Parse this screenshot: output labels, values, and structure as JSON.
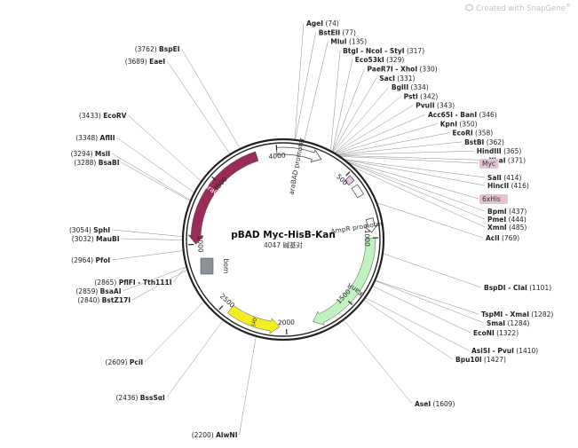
{
  "watermark": {
    "text": "Created with SnapGene",
    "mark": "®",
    "icon": "snapgene-logo-icon",
    "color": "#b9c3cf"
  },
  "plasmid": {
    "name": "pBAD Myc-HisB-Kan",
    "length_text": "4047 碱基对",
    "length_bp": 4047
  },
  "ticks": [
    {
      "label": "500",
      "bp": 500
    },
    {
      "label": "1000",
      "bp": 1000
    },
    {
      "label": "1500",
      "bp": 1500
    },
    {
      "label": "2000",
      "bp": 2000
    },
    {
      "label": "2500",
      "bp": 2500
    },
    {
      "label": "3000",
      "bp": 3000
    },
    {
      "label": "3500",
      "bp": 3500
    },
    {
      "label": "4000",
      "bp": 4000
    }
  ],
  "features": [
    {
      "name": "araBAD promoter",
      "start": 4000,
      "end": 285,
      "kind": "arrow-outline",
      "color": "#ffffff"
    },
    {
      "name": "araC",
      "start": 3850,
      "end": 3000,
      "kind": "arrow",
      "color": "#9b2c5a"
    },
    {
      "name": "rrnB T1 terminator",
      "start": 520,
      "end": 565,
      "kind": "box",
      "color": "#e7c6e1"
    },
    {
      "name": "rrnB T2 terminator",
      "start": 600,
      "end": 680,
      "kind": "box",
      "color": "#ffffff"
    },
    {
      "name": "AmpR promoter",
      "start": 860,
      "end": 960,
      "kind": "arrow-outline",
      "color": "#ffffff"
    },
    {
      "name": "KanR",
      "start": 1000,
      "end": 1800,
      "kind": "arrow",
      "color": "#bff2bf"
    },
    {
      "name": "ori",
      "start": 2440,
      "end": 2050,
      "kind": "arrow",
      "color": "#f2ee22"
    },
    {
      "name": "bom",
      "start": 2880,
      "end": 2770,
      "kind": "box",
      "color": "#8a9298"
    }
  ],
  "sites": [
    {
      "name": "AgeI",
      "pos": "(74)",
      "bp": 74
    },
    {
      "name": "BstEII",
      "pos": "(77)",
      "bp": 77
    },
    {
      "name": "MluI",
      "pos": "(135)",
      "bp": 135
    },
    {
      "name": "BtgI - NcoI - StyI",
      "pos": "(317)",
      "bp": 317
    },
    {
      "name": "Eco53kI",
      "pos": "(329)",
      "bp": 329
    },
    {
      "name": "PaeR7I - XhoI",
      "pos": "(330)",
      "bp": 330
    },
    {
      "name": "SacI",
      "pos": "(331)",
      "bp": 331
    },
    {
      "name": "BglII",
      "pos": "(334)",
      "bp": 334
    },
    {
      "name": "PstI",
      "pos": "(342)",
      "bp": 342
    },
    {
      "name": "PvuII",
      "pos": "(343)",
      "bp": 343
    },
    {
      "name": "Acc65I - BanI",
      "pos": "(346)",
      "bp": 346
    },
    {
      "name": "KpnI",
      "pos": "(350)",
      "bp": 350
    },
    {
      "name": "EcoRI",
      "pos": "(358)",
      "bp": 358
    },
    {
      "name": "BstBI",
      "pos": "(362)",
      "bp": 362
    },
    {
      "name": "HindIII",
      "pos": "(365)",
      "bp": 365
    },
    {
      "name": "XbaI",
      "pos": "(371)",
      "bp": 371
    },
    {
      "name": "Myc",
      "pos": "",
      "bp": 380,
      "tag": true
    },
    {
      "name": "SalI",
      "pos": "(414)",
      "bp": 414
    },
    {
      "name": "HincII",
      "pos": "(416)",
      "bp": 416
    },
    {
      "name": "6xHis",
      "pos": "",
      "bp": 425,
      "tag": true
    },
    {
      "name": "BpmI",
      "pos": "(437)",
      "bp": 437
    },
    {
      "name": "PmeI",
      "pos": "(444)",
      "bp": 444
    },
    {
      "name": "XmnI",
      "pos": "(485)",
      "bp": 485
    },
    {
      "name": "AclI",
      "pos": "(769)",
      "bp": 769
    },
    {
      "name": "BspDI - ClaI",
      "pos": "(1101)",
      "bp": 1101
    },
    {
      "name": "TspMI - XmaI",
      "pos": "(1282)",
      "bp": 1282
    },
    {
      "name": "SmaI",
      "pos": "(1284)",
      "bp": 1284
    },
    {
      "name": "EcoNI",
      "pos": "(1322)",
      "bp": 1322
    },
    {
      "name": "AsiSI - PvuI",
      "pos": "(1410)",
      "bp": 1410
    },
    {
      "name": "Bpu10I",
      "pos": "(1427)",
      "bp": 1427
    },
    {
      "name": "AseI",
      "pos": "(1609)",
      "bp": 1609
    },
    {
      "name": "AlwNI",
      "pos": "(2200)",
      "bp": 2200
    },
    {
      "name": "BssSαI",
      "pos": "(2436)",
      "bp": 2436
    },
    {
      "name": "PciI",
      "pos": "(2609)",
      "bp": 2609
    },
    {
      "name": "BstZ17I",
      "pos": "(2840)",
      "bp": 2840
    },
    {
      "name": "BsaAI",
      "pos": "(2859)",
      "bp": 2859
    },
    {
      "name": "PflFI - Tth111I",
      "pos": "(2865)",
      "bp": 2865
    },
    {
      "name": "PfoI",
      "pos": "(2964)",
      "bp": 2964
    },
    {
      "name": "MauBI",
      "pos": "(3032)",
      "bp": 3032
    },
    {
      "name": "SphI",
      "pos": "(3054)",
      "bp": 3054
    },
    {
      "name": "BsaBI",
      "pos": "(3288)",
      "bp": 3288
    },
    {
      "name": "MslI",
      "pos": "(3294)",
      "bp": 3294
    },
    {
      "name": "AflII",
      "pos": "(3348)",
      "bp": 3348
    },
    {
      "name": "EcoRV",
      "pos": "(3433)",
      "bp": 3433
    },
    {
      "name": "EaeI",
      "pos": "(3689)",
      "bp": 3689
    },
    {
      "name": "BspEI",
      "pos": "(3762)",
      "bp": 3762
    }
  ]
}
